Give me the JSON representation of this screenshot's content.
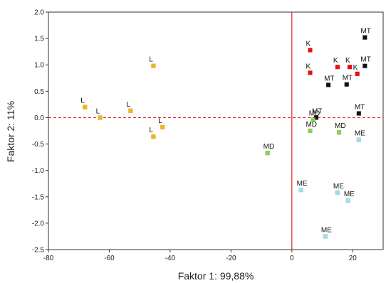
{
  "chart_data": {
    "type": "scatter",
    "title": "",
    "xlabel": "Faktor 1: 99,88%",
    "ylabel": "Faktor 2: 11%",
    "xlim": [
      -80,
      30
    ],
    "ylim": [
      -2.5,
      2.0
    ],
    "xticks": [
      -80,
      -60,
      -40,
      -20,
      0,
      20
    ],
    "yticks": [
      2.0,
      1.5,
      1.0,
      0.5,
      0.0,
      -0.5,
      -1.0,
      -1.5,
      -2.0,
      -2.5
    ],
    "grid": false,
    "reference_lines": {
      "x": 0,
      "y": 0,
      "color": "#e02020",
      "style": "dashed"
    },
    "series": [
      {
        "name": "L",
        "color": "#f2b61a",
        "points": [
          {
            "x": -68,
            "y": 0.2,
            "label": "L"
          },
          {
            "x": -63,
            "y": 0.0,
            "label": "L"
          },
          {
            "x": -53,
            "y": 0.13,
            "label": "L"
          },
          {
            "x": -45.5,
            "y": 0.98,
            "label": "L"
          },
          {
            "x": -45.5,
            "y": -0.36,
            "label": "L"
          },
          {
            "x": -42.5,
            "y": -0.18,
            "label": "L"
          }
        ]
      },
      {
        "name": "K",
        "color": "#e81010",
        "points": [
          {
            "x": 6,
            "y": 1.28,
            "label": "K"
          },
          {
            "x": 6,
            "y": 0.85,
            "label": "K"
          },
          {
            "x": 15,
            "y": 0.96,
            "label": "K"
          },
          {
            "x": 19,
            "y": 0.96,
            "label": "K"
          },
          {
            "x": 21.5,
            "y": 0.83,
            "label": "K"
          }
        ]
      },
      {
        "name": "MT",
        "color": "#111111",
        "points": [
          {
            "x": 24,
            "y": 1.52,
            "label": "MT"
          },
          {
            "x": 24,
            "y": 0.98,
            "label": "MT"
          },
          {
            "x": 12,
            "y": 0.62,
            "label": "MT"
          },
          {
            "x": 18,
            "y": 0.63,
            "label": "MT"
          },
          {
            "x": 22,
            "y": 0.08,
            "label": "MT"
          },
          {
            "x": 8,
            "y": 0.0,
            "label": "MT"
          }
        ]
      },
      {
        "name": "MD",
        "color": "#86d653",
        "points": [
          {
            "x": 6,
            "y": -0.25,
            "label": "MD"
          },
          {
            "x": 15.5,
            "y": -0.28,
            "label": "MD"
          },
          {
            "x": -8,
            "y": -0.67,
            "label": "MD"
          },
          {
            "x": 7,
            "y": -0.04,
            "label": "MD"
          }
        ]
      },
      {
        "name": "ME",
        "color": "#9fe0ea",
        "points": [
          {
            "x": 22,
            "y": -0.42,
            "label": "ME"
          },
          {
            "x": 3,
            "y": -1.37,
            "label": "ME"
          },
          {
            "x": 15,
            "y": -1.42,
            "label": "ME"
          },
          {
            "x": 18.5,
            "y": -1.57,
            "label": "ME"
          },
          {
            "x": 11,
            "y": -2.25,
            "label": "ME"
          }
        ]
      }
    ]
  }
}
